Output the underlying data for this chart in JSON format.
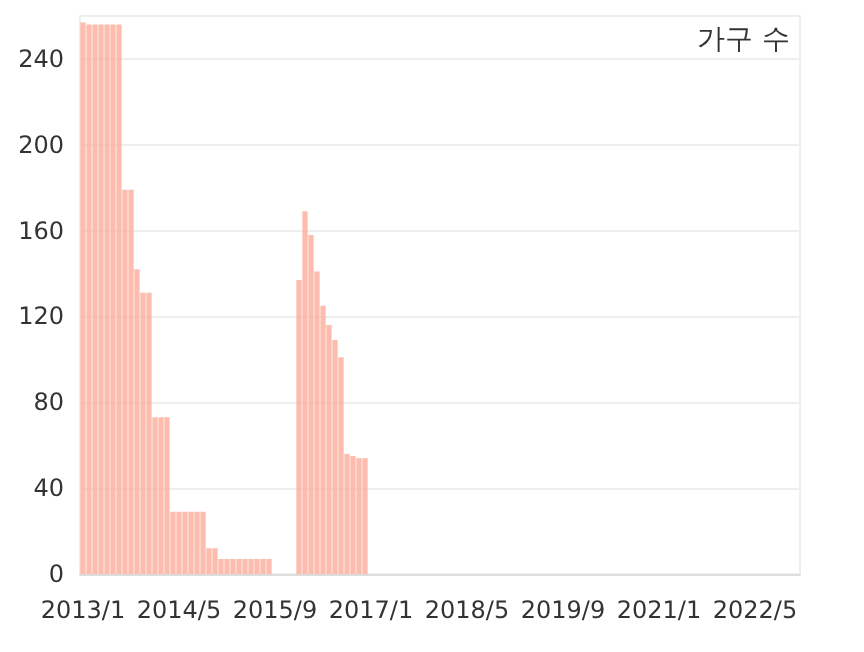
{
  "chart_data": {
    "type": "bar",
    "title": "가구 수",
    "categories": [
      "2013/1",
      null,
      null,
      null,
      null,
      null,
      null,
      null,
      null,
      null,
      null,
      null,
      null,
      null,
      null,
      null,
      "2014/5",
      null,
      null,
      null,
      null,
      null,
      null,
      null,
      null,
      null,
      null,
      null,
      null,
      null,
      null,
      null,
      "2015/9",
      null,
      null,
      null,
      null,
      null,
      null,
      null,
      null,
      null,
      null,
      null,
      null,
      null,
      null,
      null,
      "2017/1",
      null,
      null,
      null,
      null,
      null,
      null,
      null,
      null,
      null,
      null,
      null,
      null,
      null,
      null,
      null,
      "2018/5",
      null,
      null,
      null,
      null,
      null,
      null,
      null,
      null,
      null,
      null,
      null,
      null,
      null,
      null,
      null,
      "2019/9",
      null,
      null,
      null,
      null,
      null,
      null,
      null,
      null,
      null,
      null,
      null,
      null,
      null,
      null,
      null,
      "2021/1",
      null,
      null,
      null,
      null,
      null,
      null,
      null,
      null,
      null,
      null,
      null,
      null,
      null,
      null,
      null,
      "2022/5",
      null,
      null,
      null,
      null,
      null,
      null,
      null
    ],
    "values": [
      257,
      256,
      256,
      256,
      256,
      256,
      256,
      179,
      179,
      142,
      131,
      131,
      73,
      73,
      73,
      29,
      29,
      29,
      29,
      29,
      29,
      12,
      12,
      7,
      7,
      7,
      7,
      7,
      7,
      7,
      7,
      7,
      null,
      null,
      null,
      null,
      137,
      169,
      158,
      141,
      125,
      116,
      109,
      101,
      56,
      55,
      54,
      54,
      null,
      null,
      null,
      null,
      null,
      null,
      null,
      null,
      null,
      null,
      null,
      null,
      null,
      null,
      null,
      null,
      null,
      null,
      null,
      null,
      null,
      null,
      null,
      null,
      null,
      null,
      null,
      null,
      null,
      null,
      null,
      null,
      null,
      null,
      null,
      null,
      null,
      null,
      null,
      null,
      null,
      null,
      null,
      null,
      null,
      null,
      null,
      null,
      null,
      null,
      null,
      null,
      null,
      null,
      null,
      null,
      null,
      null,
      null,
      null,
      null,
      null,
      null,
      null,
      null,
      null,
      null,
      null,
      null,
      null,
      null,
      null
    ],
    "color": "#fdb09f",
    "ylim": [
      0,
      260
    ],
    "yticks": [
      0,
      40,
      80,
      120,
      160,
      200,
      240
    ],
    "grid": "y"
  }
}
